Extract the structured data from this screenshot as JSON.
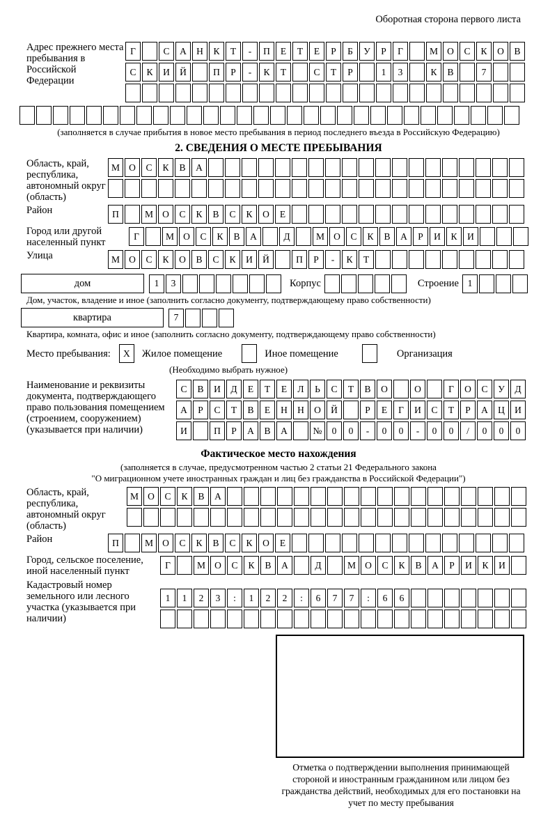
{
  "page": {
    "side_note": "Оборотная сторона первого листа"
  },
  "colors": {
    "ink": "#000000",
    "paper": "#ffffff"
  },
  "prev_address": {
    "label": "Адрес прежнего места пребывания в Российской Федерации",
    "rows": [
      {
        "text": "Г САНКТ-ПЕТЕРБУРГ МОСКОВ",
        "len": 24
      },
      {
        "text": "СКИЙ ПР-КТ СТР 13 КВ 7",
        "len": 24
      },
      {
        "text": "",
        "len": 24
      }
    ],
    "overflow_row": {
      "text": "",
      "len": 30
    },
    "note": "(заполняется в случае прибытия в новое место пребывания в период последнего въезда в Российскую Федерацию)"
  },
  "section2": {
    "title": "2. СВЕДЕНИЯ О МЕСТЕ ПРЕБЫВАНИЯ",
    "region": {
      "label": "Область, край, республика, автономный округ (область)",
      "rows": [
        {
          "text": "МОСКВА",
          "len": 25
        },
        {
          "text": "",
          "len": 25
        }
      ]
    },
    "district": {
      "label": "Район",
      "row": {
        "text": "П МОСКВСКОЕ",
        "len": 25
      }
    },
    "city": {
      "label": "Город или другой населенный пункт",
      "row": {
        "text": "Г МОСКВА Д МОСКВАРИКИ",
        "len": 24
      }
    },
    "street": {
      "label": "Улица",
      "row": {
        "text": "МОСКОВСКИЙ ПР-КТ",
        "len": 25
      }
    },
    "house": {
      "type_label": "дом",
      "number": {
        "text": "13",
        "len": 8
      },
      "korpus_label": "Корпус",
      "korpus": {
        "text": "",
        "len": 5
      },
      "stroenie_label": "Строение",
      "stroenie": {
        "text": "1",
        "len": 4
      },
      "caption": "Дом, участок, владение и иное (заполнить согласно документу, подтверждающему право собственности)"
    },
    "apartment": {
      "type_label": "квартира",
      "number": {
        "text": "7",
        "len": 4
      },
      "caption": "Квартира, комната, офис и иное (заполнить согласно документу, подтверждающему право собственности)"
    },
    "stay_type": {
      "label": "Место пребывания:",
      "options": [
        {
          "label": "Жилое помещение",
          "checked": "X"
        },
        {
          "label": "Иное помещение",
          "checked": ""
        },
        {
          "label": "Организация",
          "checked": ""
        }
      ],
      "hint": "(Необходимо выбрать нужное)"
    },
    "doc": {
      "label": "Наименование и реквизиты документа, подтверждающего право пользования помещением (строением, сооружением) (указывается при наличии)",
      "rows": [
        {
          "text": "СВИДЕТЕЛЬСТВО О ГОСУД",
          "len": 21
        },
        {
          "text": "АРСТВЕННОЙ РЕГИСТРАЦИ",
          "len": 21
        },
        {
          "text": "И ПРАВА №00-00-00/000",
          "len": 21
        }
      ]
    }
  },
  "actual_location": {
    "title": "Фактическое место нахождения",
    "note_line1": "(заполняется в случае, предусмотренном частью 2 статьи 21 Федерального закона",
    "note_line2": "\"О миграционном учете иностранных граждан и лиц без гражданства в Российской Федерации\")",
    "region": {
      "label": "Область, край, республика, автономный округ (область)",
      "rows": [
        {
          "text": "МОСКВА",
          "len": 24
        },
        {
          "text": "",
          "len": 24
        }
      ]
    },
    "district": {
      "label": "Район",
      "row": {
        "text": "П МОСКВСКОЕ",
        "len": 25
      }
    },
    "city": {
      "label": "Город, сельское поселение, иной населенный пункт",
      "row": {
        "text": "Г МОСКВА Д МОСКВАРИКИ",
        "len": 22
      }
    },
    "cadastral": {
      "label": "Кадастровый номер земельного или лесного участка (указывается при наличии)",
      "rows": [
        {
          "text": "1123:122:677:66",
          "len": 22
        },
        {
          "text": "",
          "len": 22
        }
      ]
    },
    "stamp_box_note": "Отметка о подтверждении выполнения принимающей стороной и иностранным гражданином или лицом без гражданства действий, необходимых для его постановки на учет по месту пребывания"
  }
}
